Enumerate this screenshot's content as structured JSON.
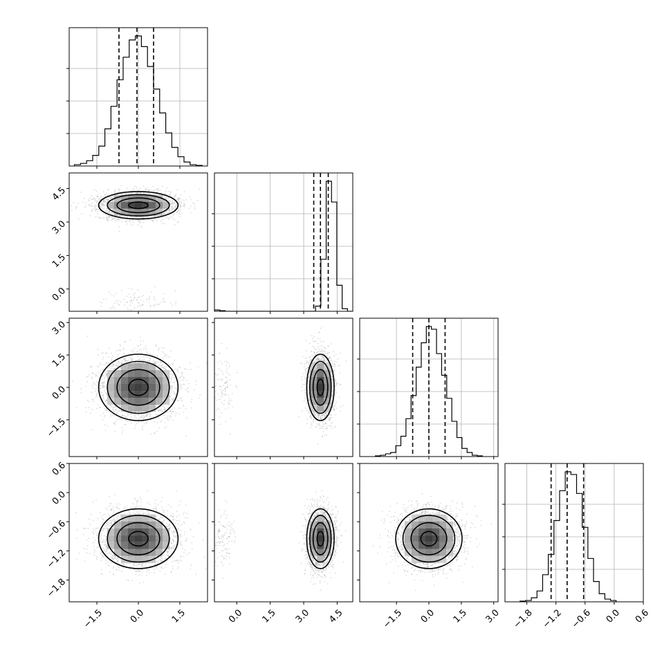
{
  "colors": {
    "ink": "#000000",
    "grid": "#b0b0b0",
    "scatter": "#9a9a9a",
    "background": "#ffffff"
  },
  "chart_data": {
    "type": "corner",
    "grid": true,
    "parameters": [
      {
        "center": 0.0,
        "sigma": 0.7,
        "quantiles": [
          -0.7,
          -0.05,
          0.55
        ],
        "range": [
          -2.5,
          2.5
        ],
        "ticks": [
          -1.5,
          0.0,
          1.5
        ],
        "tick_labels": [
          "−1.5",
          "0.0",
          "1.5"
        ]
      },
      {
        "center": 3.75,
        "sigma": 0.3,
        "quantiles": [
          3.45,
          3.75,
          4.1
        ],
        "range": [
          -1.0,
          5.2
        ],
        "ticks": [
          0.0,
          1.5,
          3.0,
          4.5
        ],
        "tick_labels": [
          "0.0",
          "1.5",
          "3.0",
          "4.5"
        ]
      },
      {
        "center": 0.0,
        "sigma": 0.75,
        "quantiles": [
          -0.75,
          0.0,
          0.75
        ],
        "range": [
          -3.2,
          3.2
        ],
        "ticks": [
          -1.5,
          0.0,
          1.5,
          3.0
        ],
        "tick_labels": [
          "−1.5",
          "0.0",
          "1.5",
          "3.0"
        ]
      },
      {
        "center": -0.95,
        "sigma": 0.3,
        "quantiles": [
          -1.3,
          -0.97,
          -0.63
        ],
        "range": [
          -2.25,
          0.6
        ],
        "ticks": [
          -1.8,
          -1.2,
          -0.6,
          0.0,
          0.6
        ],
        "tick_labels": [
          "−1.8",
          "−1.2",
          "−0.6",
          "0.0",
          "0.6"
        ]
      }
    ],
    "histograms": [
      [
        1,
        2,
        4,
        8,
        15,
        28,
        45,
        65,
        82,
        95,
        98,
        90,
        75,
        58,
        40,
        25,
        14,
        7,
        3,
        1,
        0.5
      ],
      [
        1,
        0.5,
        0,
        0,
        0,
        0,
        0,
        0,
        0,
        0,
        0,
        0,
        0,
        0,
        0,
        0,
        0,
        0,
        0,
        4,
        40,
        100,
        84,
        20,
        2,
        0
      ],
      [
        0.5,
        1,
        2,
        3,
        8,
        15,
        28,
        45,
        66,
        84,
        96,
        94,
        76,
        60,
        43,
        26,
        14,
        6,
        3,
        1,
        0.5
      ],
      [
        0.5,
        1,
        3,
        8,
        20,
        35,
        60,
        82,
        96,
        94,
        80,
        55,
        32,
        15,
        6,
        2,
        1
      ]
    ],
    "outlier_fraction_param2": 0.04,
    "outlier_center_param2": -0.6
  }
}
